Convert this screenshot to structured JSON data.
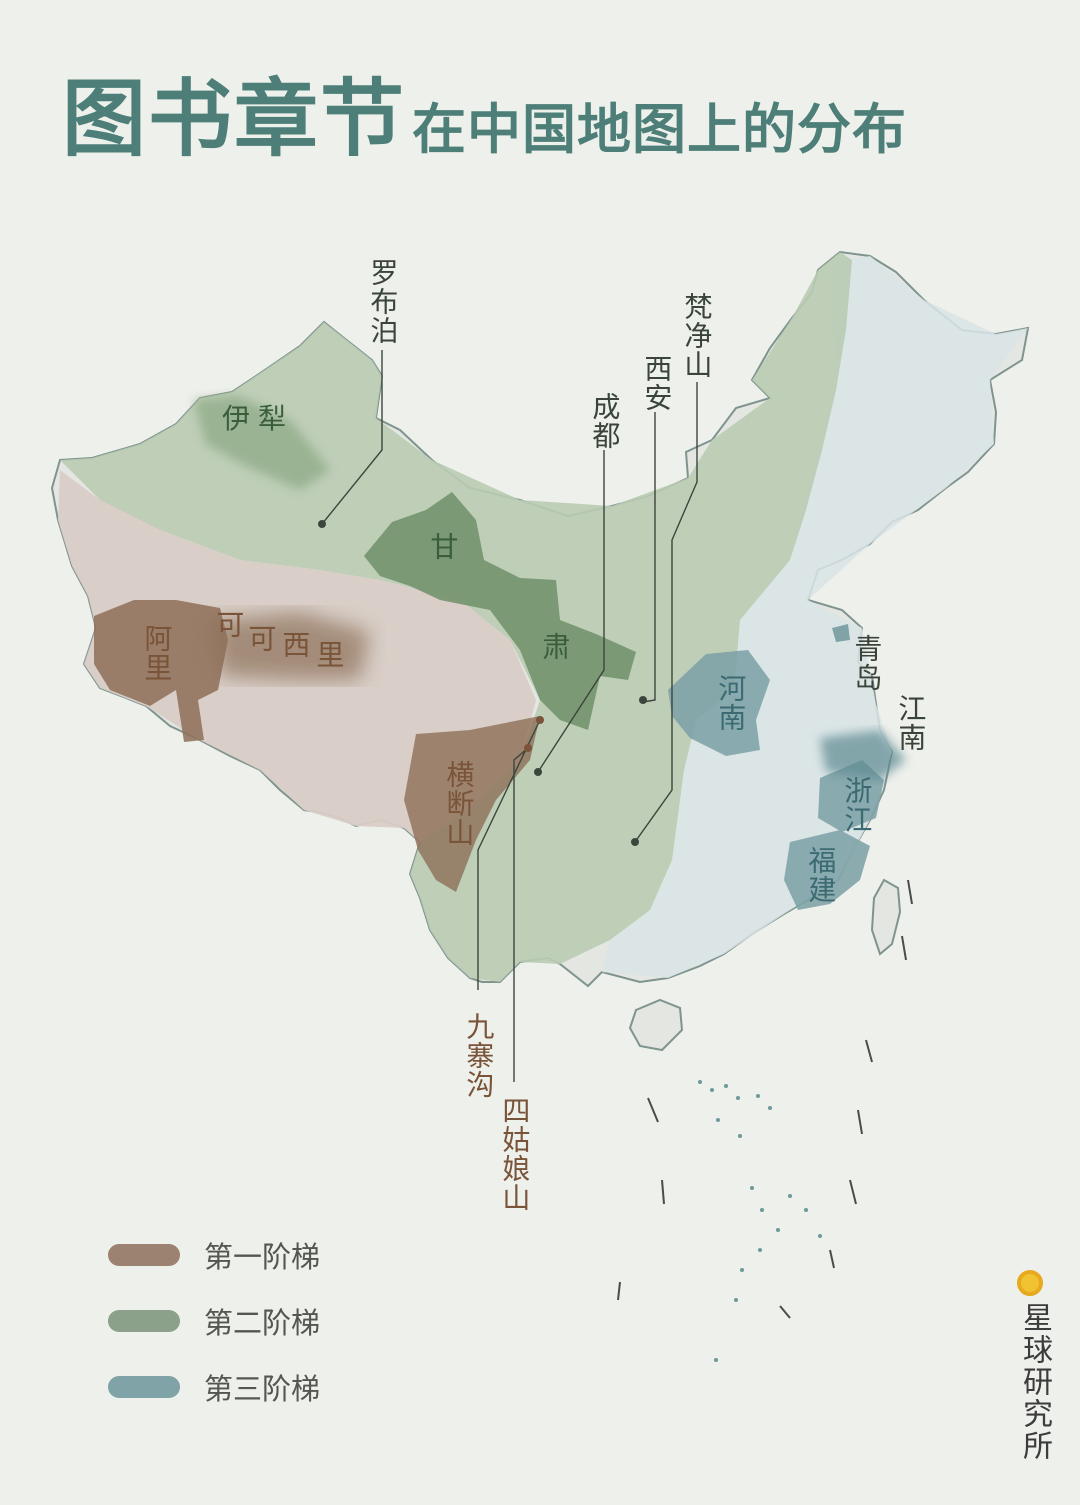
{
  "title": {
    "main": "图书章节",
    "sub": "在中国地图上的分布"
  },
  "colors": {
    "step1": "#9c8270",
    "step2": "#8ba18a",
    "step3": "#7fa3a7",
    "title": "#4d7f78",
    "brand_dot": "#f1c232"
  },
  "callouts": {
    "luobupo": "罗布泊",
    "fanjingshan": "梵净山",
    "xian": "西安",
    "chengdu": "成都",
    "jiuzhaigou": "九寨沟",
    "siguniangshan": "四姑娘山"
  },
  "regions": {
    "yili": "伊犁",
    "gan": "甘",
    "su": "肃",
    "ali": "阿里",
    "kekexili_1": "可",
    "kekexili_2": "可",
    "kekexili_3": "西",
    "kekexili_4": "里",
    "hengduanshan": "横断山",
    "henan": "河南",
    "qingdao": "青岛",
    "jiangnan": "江南",
    "zhejiang": "浙江",
    "fujian": "福建"
  },
  "legend": [
    {
      "label": "第一阶梯",
      "color": "#9c8270"
    },
    {
      "label": "第二阶梯",
      "color": "#8ba18a"
    },
    {
      "label": "第三阶梯",
      "color": "#7fa3a7"
    }
  ],
  "brand": {
    "name": "星球研究所",
    "icon": "circle-logo-icon"
  }
}
